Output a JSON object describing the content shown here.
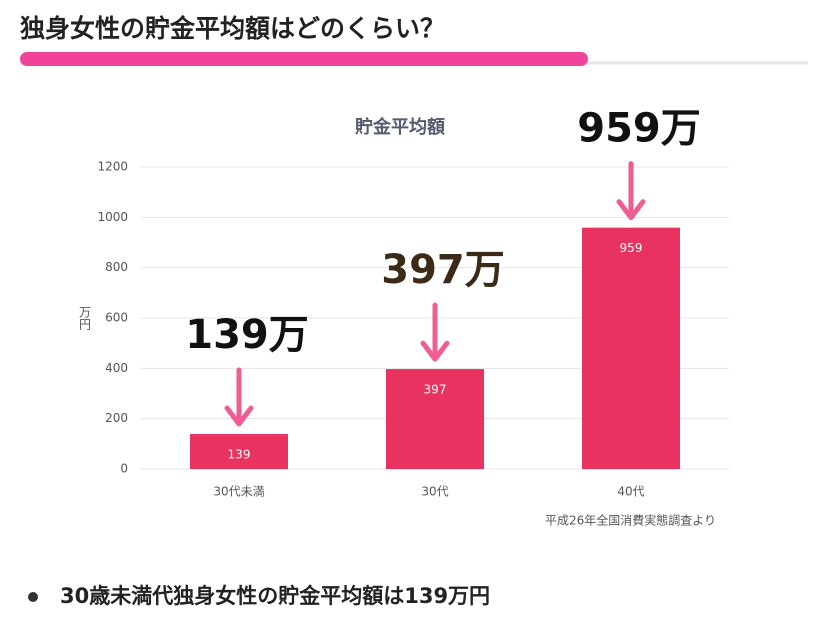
{
  "header": {
    "title": "独身女性の貯金平均額はどのくらい？"
  },
  "chart_data": {
    "type": "bar",
    "title": "貯金平均額",
    "y_label": "万円",
    "categories": [
      "30代未満",
      "30代",
      "40代"
    ],
    "values": [
      139,
      397,
      959
    ],
    "color": "#e8325f",
    "ylim": [
      0,
      1200
    ],
    "yticks": [
      0,
      200,
      400,
      600,
      800,
      1000,
      1200
    ],
    "grid": true,
    "annotations": [
      {
        "text": "139万",
        "color": "#111111"
      },
      {
        "text": "397万",
        "color": "#3b2a17"
      },
      {
        "text": "959万",
        "color": "#111111"
      }
    ],
    "source": "平成26年全国消費実態調査より"
  },
  "bullets": [
    "30歳未満代独身女性の貯金平均額は139万円"
  ]
}
